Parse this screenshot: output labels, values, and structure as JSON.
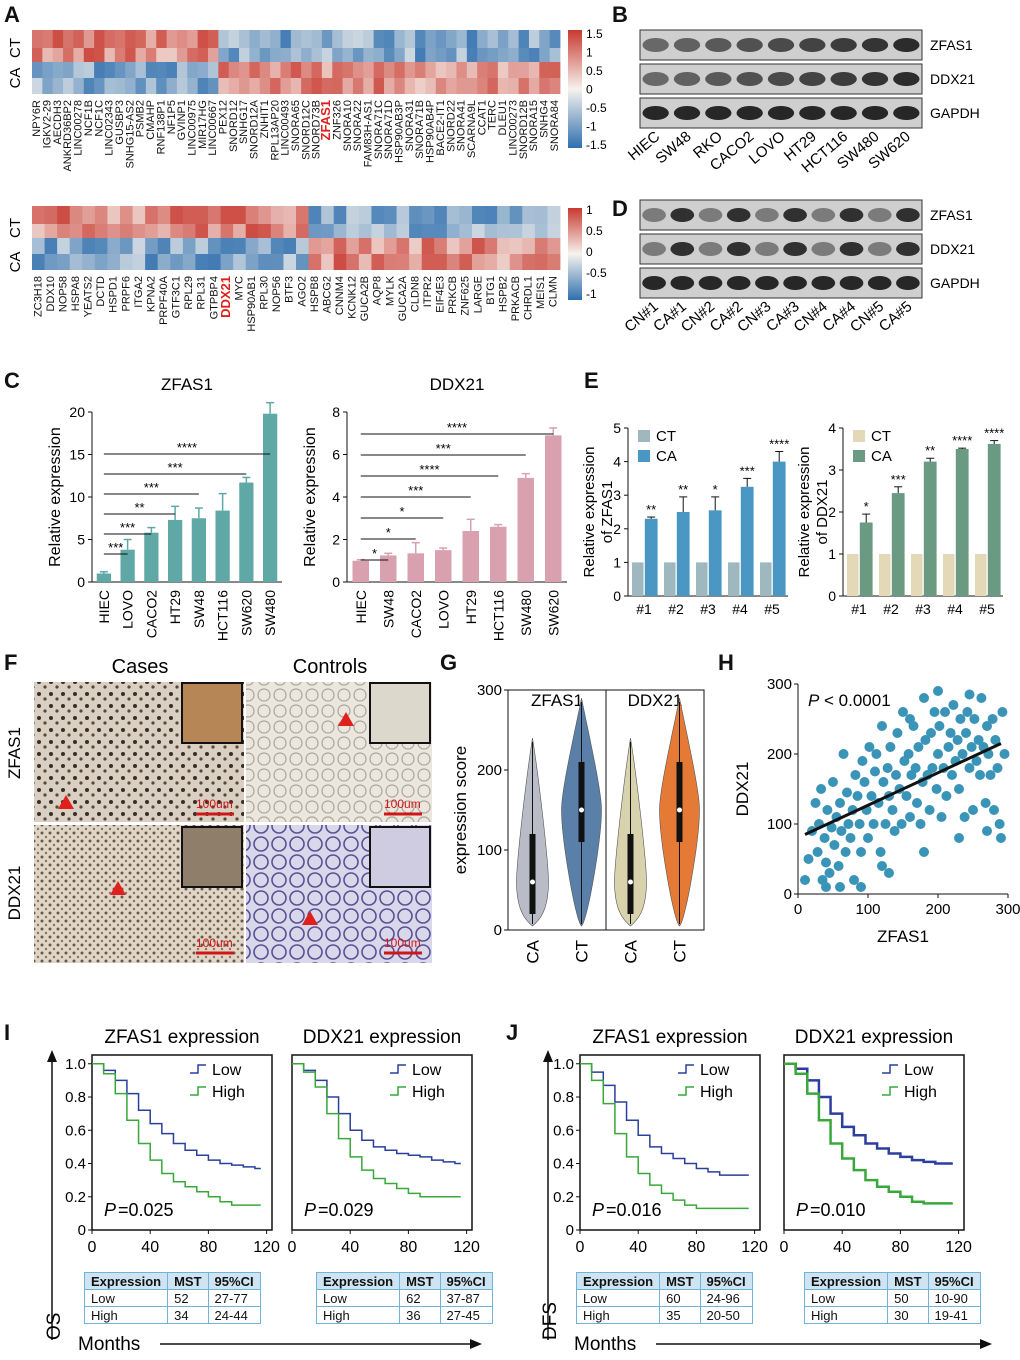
{
  "panels": {
    "A": "A",
    "B": "B",
    "C": "C",
    "D": "D",
    "E": "E",
    "F": "F",
    "G": "G",
    "H": "H",
    "I": "I",
    "J": "J"
  },
  "heatmap": {
    "row_labels": [
      "CT",
      "CA"
    ],
    "scale1": [
      "1.5",
      "1",
      "0.5",
      "0",
      "-0.5",
      "-1",
      "-1.5"
    ],
    "scale2": [
      "1",
      "0.5",
      "0",
      "-0.5",
      "-1"
    ],
    "genes_top": [
      "NPY6R",
      "IGKV2-29",
      "AECDH3",
      "ANKRD36BP2",
      "LINC00278",
      "NCF1B",
      "NCF1C",
      "LINC02343",
      "GUSBP3",
      "SNHG15-AS2",
      "PSMB2",
      "CMAHP",
      "RNF138P1",
      "NF1P5",
      "GVINP1",
      "LINC00975",
      "MIR17HG",
      "LINC00667",
      "PEX12",
      "SNORD12",
      "SNHG17",
      "SNORD12A",
      "ZNHIT1",
      "RPL13AP20",
      "LINC00493",
      "SNORA65",
      "SNORD12C",
      "SNORD73B",
      "ZFAS1",
      "ZNF326",
      "SNORA10",
      "SNORA22",
      "FAM83H-AS1",
      "SNORA71C",
      "SNORA71D",
      "HSP90AB3P",
      "SNORA31",
      "SNORA71B",
      "HSP90AB4P",
      "BACE2-IT1",
      "SNORD22",
      "SNORA41",
      "SCARNA9L",
      "CCAT1",
      "TERC",
      "DLEU1",
      "LINC00273",
      "SNORD12B",
      "SNORA15",
      "SNHG4",
      "SNORA84"
    ],
    "highlight_top": "ZFAS1",
    "genes_bottom": [
      "ZC3H18",
      "DDX10",
      "NOP58",
      "HSPA8",
      "YEATS2",
      "DCTD",
      "HSPD1",
      "PRPF6",
      "ITGA2",
      "KPNA2",
      "PRPF40A",
      "GTF3C1",
      "RPL29",
      "RPL31",
      "GTPBP4",
      "DDX21",
      "MYC",
      "HSP90AB1",
      "RPL30",
      "NOP56",
      "BTF3",
      "AGO2",
      "HSPB8",
      "ABCG2",
      "CNNM4",
      "KCNK12",
      "GUCA2B",
      "AQP8",
      "MYLK",
      "GUCA2A",
      "CLDN8",
      "ITPR2",
      "EIF4E3",
      "PRKCB",
      "ZNF625",
      "LARGE",
      "BTG1",
      "HSPB2",
      "PRKACB",
      "CHRDL1",
      "MEIS1",
      "CLMN"
    ],
    "highlight_bottom": "DDX21"
  },
  "blot": {
    "cell_lines": [
      "HIEC",
      "SW48",
      "RKO",
      "CACO2",
      "LOVO",
      "HT29",
      "HCT116",
      "SW480",
      "SW620"
    ],
    "tissues": [
      "CN#1",
      "CA#1",
      "CN#2",
      "CA#2",
      "CN#3",
      "CA#3",
      "CN#4",
      "CA#4",
      "CN#5",
      "CA#5"
    ],
    "bands": [
      "ZFAS1",
      "DDX21",
      "GAPDH"
    ]
  },
  "ihc": {
    "col_cases": "Cases",
    "col_controls": "Controls",
    "row1": "ZFAS1",
    "row2": "DDX21",
    "scale": "100um"
  },
  "km": {
    "I_titles": [
      "ZFAS1 expression",
      "DDX21 expression"
    ],
    "J_titles": [
      "ZFAS1 expression",
      "DDX21 expression"
    ],
    "legend_low": "Low",
    "legend_high": "High",
    "I_pvalues": [
      "=0.025",
      "=0.029"
    ],
    "J_pvalues": [
      "=0.016",
      "=0.010"
    ],
    "p_label": "P",
    "yticks": [
      "1.0",
      "0.8",
      "0.6",
      "0.4",
      "0.2",
      "0"
    ],
    "xticks": [
      "0",
      "40",
      "80",
      "120"
    ],
    "os_label": "OS",
    "dfs_label": "DFS",
    "months": "Months",
    "table_header": [
      "Expression",
      "MST",
      "95%CI"
    ],
    "tables": [
      [
        [
          "Low",
          "52",
          "27-77"
        ],
        [
          "High",
          "34",
          "24-44"
        ]
      ],
      [
        [
          "Low",
          "62",
          "37-87"
        ],
        [
          "High",
          "36",
          "27-45"
        ]
      ],
      [
        [
          "Low",
          "60",
          "24-96"
        ],
        [
          "High",
          "35",
          "20-50"
        ]
      ],
      [
        [
          "Low",
          "50",
          "10-90"
        ],
        [
          "High",
          "30",
          "19-41"
        ]
      ]
    ]
  },
  "chart_data": [
    {
      "type": "bar",
      "panel": "C",
      "title": "ZFAS1",
      "ylabel": "Relative expression",
      "categories": [
        "HIEC",
        "LOVO",
        "CACO2",
        "HT29",
        "SW48",
        "HCT116",
        "SW620",
        "SW480"
      ],
      "values": [
        1,
        3.8,
        5.8,
        7.3,
        7.5,
        8.4,
        11.7,
        19.8
      ],
      "errors": [
        0.2,
        1.2,
        0.6,
        1.6,
        1.2,
        2.0,
        0.6,
        1.3
      ],
      "ylim": [
        0,
        20
      ],
      "yticks": [
        0,
        5,
        10,
        15,
        20
      ],
      "color": "#5fa8a6",
      "significance": [
        [
          "LOVO",
          "***"
        ],
        [
          "CACO2",
          "***"
        ],
        [
          "HT29",
          "**"
        ],
        [
          "SW48",
          "***"
        ],
        [
          "SW620",
          "***"
        ],
        [
          "SW480",
          "****"
        ]
      ]
    },
    {
      "type": "bar",
      "panel": "C",
      "title": "DDX21",
      "ylabel": "Relative expression",
      "categories": [
        "HIEC",
        "SW48",
        "CACO2",
        "LOVO",
        "HT29",
        "HCT116",
        "SW480",
        "SW620"
      ],
      "values": [
        1,
        1.25,
        1.35,
        1.5,
        2.4,
        2.6,
        4.9,
        6.9
      ],
      "errors": [
        0.05,
        0.1,
        0.5,
        0.1,
        0.55,
        0.1,
        0.2,
        0.35
      ],
      "ylim": [
        0,
        8
      ],
      "yticks": [
        0,
        2,
        4,
        6,
        8
      ],
      "color": "#d9a0b0",
      "significance": [
        [
          "SW48",
          "*"
        ],
        [
          "CACO2",
          "*"
        ],
        [
          "LOVO",
          "*"
        ],
        [
          "HT29",
          "***"
        ],
        [
          "HCT116",
          "****"
        ],
        [
          "SW480",
          "***"
        ],
        [
          "SW620",
          "****"
        ]
      ]
    },
    {
      "type": "bar",
      "panel": "E",
      "ylabel": "Relative  expression\nof ZFAS1",
      "categories": [
        "#1",
        "#2",
        "#3",
        "#4",
        "#5"
      ],
      "series": [
        {
          "name": "CT",
          "values": [
            1,
            1,
            1,
            1,
            1
          ],
          "color": "#9fb7be"
        },
        {
          "name": "CA",
          "values": [
            2.3,
            2.5,
            2.55,
            3.25,
            4.0
          ],
          "errors": [
            0.05,
            0.45,
            0.4,
            0.25,
            0.3
          ],
          "color": "#4b97c4"
        }
      ],
      "ylim": [
        0,
        5
      ],
      "yticks": [
        0,
        1,
        2,
        3,
        4,
        5
      ],
      "stars": [
        "**",
        "**",
        "*",
        "***",
        "****"
      ]
    },
    {
      "type": "bar",
      "panel": "E",
      "ylabel": "Relative  expression\nof DDX21",
      "categories": [
        "#1",
        "#2",
        "#3",
        "#4",
        "#5"
      ],
      "series": [
        {
          "name": "CT",
          "values": [
            1,
            1,
            1,
            1,
            1
          ],
          "color": "#e3d8b8"
        },
        {
          "name": "CA",
          "values": [
            1.75,
            2.45,
            3.2,
            3.5,
            3.62
          ],
          "errors": [
            0.2,
            0.15,
            0.08,
            0.02,
            0.08
          ],
          "color": "#6a9b82"
        }
      ],
      "ylim": [
        0,
        4
      ],
      "yticks": [
        0,
        1,
        2,
        3,
        4
      ],
      "stars": [
        "*",
        "***",
        "**",
        "****",
        "****"
      ]
    },
    {
      "type": "violin",
      "panel": "G",
      "ylabel": "expression score",
      "groups": [
        "ZFAS1",
        "DDX21"
      ],
      "categories": [
        "CA",
        "CT",
        "CA",
        "CT"
      ],
      "medians": [
        60,
        150,
        60,
        150
      ],
      "ylim": [
        0,
        300
      ],
      "yticks": [
        0,
        100,
        200,
        300
      ]
    },
    {
      "type": "scatter",
      "panel": "H",
      "xlabel": "ZFAS1",
      "ylabel": "DDX21",
      "annotation": "< 0.0001",
      "xlim": [
        0,
        300
      ],
      "ylim": [
        0,
        300
      ],
      "xticks": [
        0,
        100,
        200,
        300
      ],
      "yticks": [
        0,
        100,
        200,
        300
      ],
      "fit": [
        [
          10,
          85
        ],
        [
          290,
          215
        ]
      ],
      "points": [
        [
          10,
          20
        ],
        [
          15,
          50
        ],
        [
          20,
          90
        ],
        [
          25,
          130
        ],
        [
          28,
          60
        ],
        [
          30,
          100
        ],
        [
          33,
          150
        ],
        [
          35,
          20
        ],
        [
          38,
          80
        ],
        [
          40,
          45
        ],
        [
          42,
          120
        ],
        [
          45,
          30
        ],
        [
          48,
          95
        ],
        [
          50,
          160
        ],
        [
          52,
          70
        ],
        [
          55,
          110
        ],
        [
          58,
          40
        ],
        [
          60,
          130
        ],
        [
          62,
          90
        ],
        [
          65,
          200
        ],
        [
          68,
          60
        ],
        [
          70,
          145
        ],
        [
          72,
          100
        ],
        [
          75,
          80
        ],
        [
          78,
          120
        ],
        [
          80,
          20
        ],
        [
          82,
          170
        ],
        [
          85,
          140
        ],
        [
          88,
          100
        ],
        [
          90,
          60
        ],
        [
          92,
          190
        ],
        [
          95,
          160
        ],
        [
          98,
          120
        ],
        [
          100,
          80
        ],
        [
          102,
          210
        ],
        [
          105,
          140
        ],
        [
          108,
          100
        ],
        [
          110,
          175
        ],
        [
          112,
          200
        ],
        [
          115,
          130
        ],
        [
          118,
          60
        ],
        [
          120,
          240
        ],
        [
          122,
          160
        ],
        [
          125,
          100
        ],
        [
          128,
          180
        ],
        [
          130,
          140
        ],
        [
          132,
          210
        ],
        [
          135,
          120
        ],
        [
          138,
          90
        ],
        [
          140,
          170
        ],
        [
          142,
          230
        ],
        [
          145,
          150
        ],
        [
          148,
          100
        ],
        [
          150,
          260
        ],
        [
          152,
          190
        ],
        [
          155,
          140
        ],
        [
          158,
          200
        ],
        [
          160,
          110
        ],
        [
          162,
          170
        ],
        [
          165,
          240
        ],
        [
          168,
          180
        ],
        [
          170,
          130
        ],
        [
          172,
          210
        ],
        [
          175,
          100
        ],
        [
          178,
          160
        ],
        [
          180,
          280
        ],
        [
          182,
          220
        ],
        [
          185,
          170
        ],
        [
          188,
          120
        ],
        [
          190,
          230
        ],
        [
          192,
          180
        ],
        [
          195,
          260
        ],
        [
          198,
          150
        ],
        [
          200,
          200
        ],
        [
          202,
          240
        ],
        [
          205,
          110
        ],
        [
          208,
          180
        ],
        [
          210,
          260
        ],
        [
          212,
          140
        ],
        [
          215,
          210
        ],
        [
          218,
          230
        ],
        [
          220,
          170
        ],
        [
          222,
          270
        ],
        [
          225,
          190
        ],
        [
          228,
          220
        ],
        [
          230,
          150
        ],
        [
          232,
          250
        ],
        [
          235,
          200
        ],
        [
          238,
          110
        ],
        [
          240,
          230
        ],
        [
          242,
          260
        ],
        [
          245,
          180
        ],
        [
          248,
          210
        ],
        [
          250,
          120
        ],
        [
          252,
          250
        ],
        [
          255,
          190
        ],
        [
          258,
          220
        ],
        [
          260,
          170
        ],
        [
          262,
          280
        ],
        [
          265,
          210
        ],
        [
          268,
          130
        ],
        [
          270,
          240
        ],
        [
          272,
          200
        ],
        [
          275,
          170
        ],
        [
          278,
          250
        ],
        [
          280,
          120
        ],
        [
          282,
          220
        ],
        [
          285,
          180
        ],
        [
          288,
          100
        ],
        [
          290,
          80
        ],
        [
          292,
          260
        ],
        [
          295,
          200
        ],
        [
          60,
          10
        ],
        [
          90,
          10
        ],
        [
          120,
          40
        ],
        [
          40,
          10
        ],
        [
          180,
          60
        ],
        [
          230,
          80
        ],
        [
          270,
          90
        ],
        [
          130,
          30
        ],
        [
          160,
          250
        ],
        [
          200,
          290
        ],
        [
          245,
          285
        ]
      ]
    },
    {
      "type": "line",
      "panel": "I",
      "title": "ZFAS1 expression",
      "series": [
        {
          "name": "Low",
          "color": "#2a3f9e"
        },
        {
          "name": "High",
          "color": "#39a83a"
        }
      ],
      "xlim": [
        0,
        120
      ],
      "ylim": [
        0,
        1
      ]
    },
    {
      "type": "line",
      "panel": "I",
      "title": "DDX21 expression",
      "series": [
        {
          "name": "Low",
          "color": "#2a3f9e"
        },
        {
          "name": "High",
          "color": "#39a83a"
        }
      ],
      "xlim": [
        0,
        120
      ],
      "ylim": [
        0,
        1
      ]
    },
    {
      "type": "line",
      "panel": "J",
      "title": "ZFAS1 expression",
      "series": [
        {
          "name": "Low",
          "color": "#2a3f9e"
        },
        {
          "name": "High",
          "color": "#39a83a"
        }
      ],
      "xlim": [
        0,
        120
      ],
      "ylim": [
        0,
        1
      ]
    },
    {
      "type": "line",
      "panel": "J",
      "title": "DDX21 expression",
      "series": [
        {
          "name": "Low",
          "color": "#2a3f9e"
        },
        {
          "name": "High",
          "color": "#39a83a"
        }
      ],
      "xlim": [
        0,
        120
      ],
      "ylim": [
        0,
        1
      ]
    }
  ]
}
